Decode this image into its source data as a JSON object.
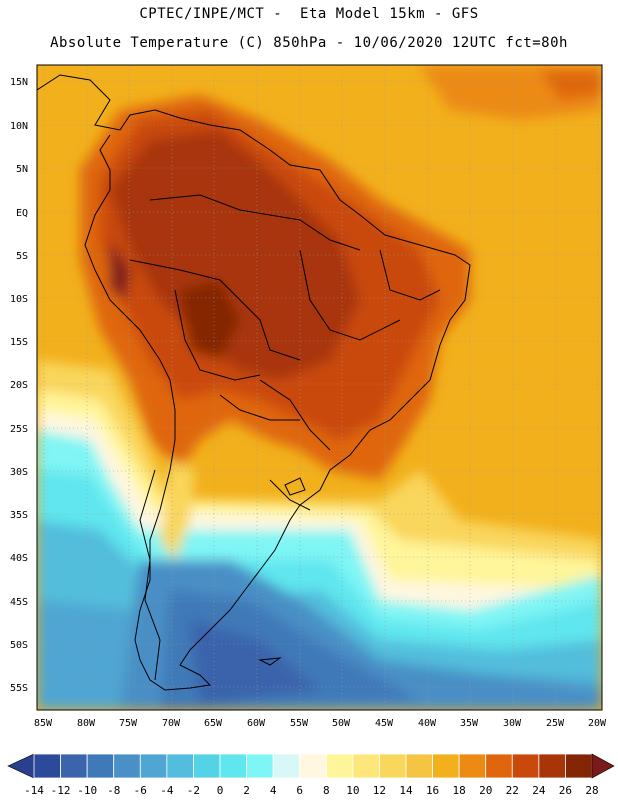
{
  "header": {
    "line1": "CPTEC/INPE/MCT -  Eta Model 15km - GFS",
    "line2": "Absolute Temperature (C) 850hPa - 10/06/2020 12UTC fct=80h"
  },
  "map": {
    "lat_labels": [
      "15N",
      "10N",
      "5N",
      "EQ",
      "5S",
      "10S",
      "15S",
      "20S",
      "25S",
      "30S",
      "35S",
      "40S",
      "45S",
      "50S",
      "55S"
    ],
    "lon_labels": [
      "85W",
      "80W",
      "75W",
      "70W",
      "65W",
      "60W",
      "55W",
      "50W",
      "45W",
      "40W",
      "35W",
      "30W",
      "25W",
      "20W"
    ]
  },
  "colorbar": {
    "labels": [
      "-14",
      "-12",
      "-10",
      "-8",
      "-6",
      "-4",
      "-2",
      "0",
      "2",
      "4",
      "6",
      "8",
      "10",
      "12",
      "14",
      "16",
      "18",
      "20",
      "22",
      "24",
      "26",
      "28"
    ],
    "colors": [
      "#2c4a9a",
      "#3a64ab",
      "#3f79b8",
      "#4a8fc6",
      "#4fa6d2",
      "#52bddc",
      "#55d3e6",
      "#5fe6ee",
      "#7ff5f5",
      "#d8f8f8",
      "#fff7e0",
      "#fff59a",
      "#fde77a",
      "#f9d65c",
      "#f5c442",
      "#f2b01c",
      "#ec8a13",
      "#df660e",
      "#c9490c",
      "#a83408",
      "#842506"
    ],
    "low_color": "#2a3f8e",
    "high_color": "#7a1a1a"
  }
}
